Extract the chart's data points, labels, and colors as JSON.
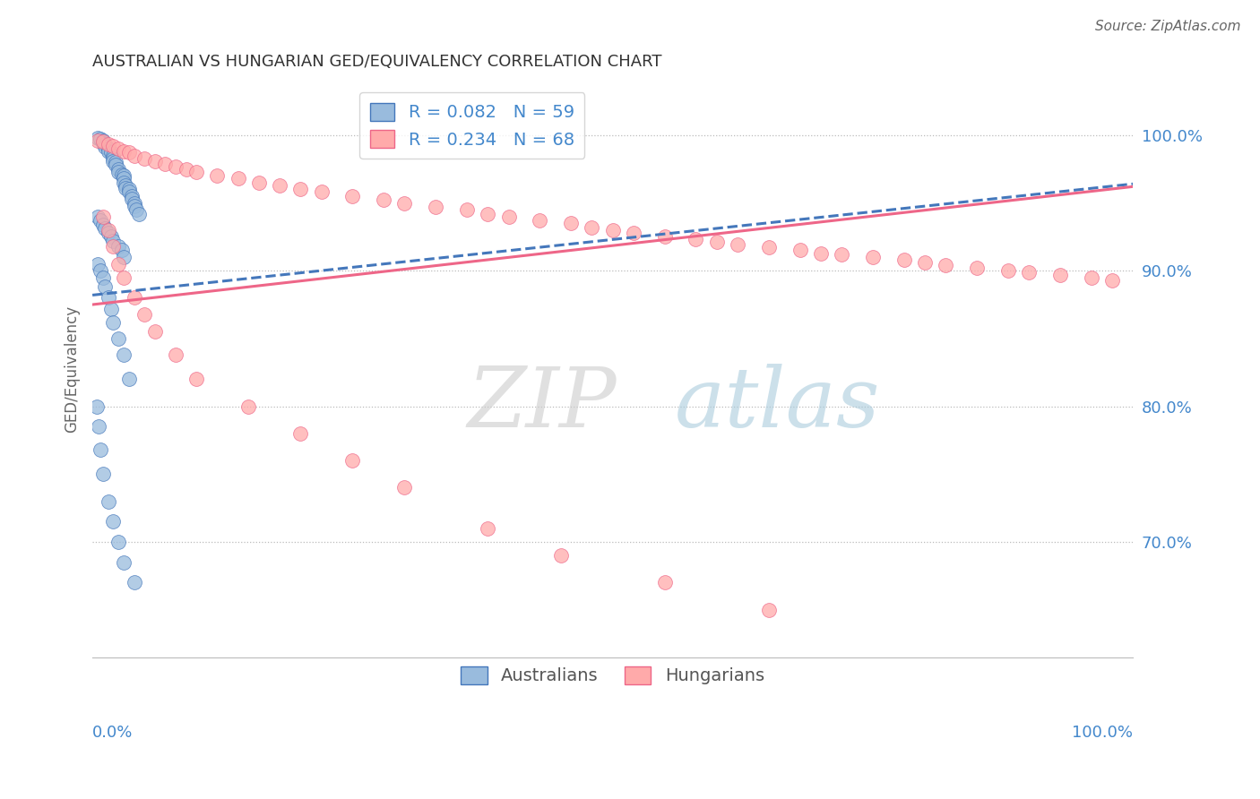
{
  "title": "AUSTRALIAN VS HUNGARIAN GED/EQUIVALENCY CORRELATION CHART",
  "source": "Source: ZipAtlas.com",
  "ylabel": "GED/Equivalency",
  "y_tick_labels": [
    "70.0%",
    "80.0%",
    "90.0%",
    "100.0%"
  ],
  "y_tick_values": [
    0.7,
    0.8,
    0.9,
    1.0
  ],
  "x_lim": [
    0.0,
    1.0
  ],
  "y_lim": [
    0.615,
    1.04
  ],
  "legend_r_blue": "R = 0.082",
  "legend_n_blue": "N = 59",
  "legend_r_pink": "R = 0.234",
  "legend_n_pink": "N = 68",
  "color_blue": "#99BBDD",
  "color_pink": "#FFAAAA",
  "color_blue_line": "#4477BB",
  "color_pink_line": "#EE6688",
  "color_axis_label": "#4488CC",
  "watermark_zip": "ZIP",
  "watermark_atlas": "atlas",
  "aus_x": [
    0.005,
    0.008,
    0.01,
    0.01,
    0.012,
    0.012,
    0.015,
    0.015,
    0.018,
    0.02,
    0.02,
    0.02,
    0.022,
    0.022,
    0.025,
    0.025,
    0.028,
    0.03,
    0.03,
    0.03,
    0.032,
    0.032,
    0.035,
    0.035,
    0.038,
    0.038,
    0.04,
    0.04,
    0.042,
    0.045,
    0.005,
    0.008,
    0.01,
    0.012,
    0.015,
    0.018,
    0.02,
    0.025,
    0.028,
    0.03,
    0.005,
    0.008,
    0.01,
    0.012,
    0.015,
    0.018,
    0.02,
    0.025,
    0.03,
    0.035,
    0.004,
    0.006,
    0.008,
    0.01,
    0.015,
    0.02,
    0.025,
    0.03,
    0.04
  ],
  "aus_y": [
    0.998,
    0.997,
    0.996,
    0.994,
    0.993,
    0.991,
    0.99,
    0.988,
    0.987,
    0.985,
    0.983,
    0.981,
    0.98,
    0.978,
    0.975,
    0.973,
    0.971,
    0.97,
    0.968,
    0.965,
    0.963,
    0.961,
    0.96,
    0.958,
    0.955,
    0.953,
    0.95,
    0.948,
    0.945,
    0.942,
    0.94,
    0.937,
    0.934,
    0.931,
    0.928,
    0.925,
    0.922,
    0.918,
    0.915,
    0.91,
    0.905,
    0.9,
    0.895,
    0.888,
    0.88,
    0.872,
    0.862,
    0.85,
    0.838,
    0.82,
    0.8,
    0.785,
    0.768,
    0.75,
    0.73,
    0.715,
    0.7,
    0.685,
    0.67
  ],
  "hun_x": [
    0.005,
    0.01,
    0.015,
    0.02,
    0.025,
    0.03,
    0.035,
    0.04,
    0.05,
    0.06,
    0.07,
    0.08,
    0.09,
    0.1,
    0.12,
    0.14,
    0.16,
    0.18,
    0.2,
    0.22,
    0.25,
    0.28,
    0.3,
    0.33,
    0.36,
    0.38,
    0.4,
    0.43,
    0.46,
    0.48,
    0.5,
    0.52,
    0.55,
    0.58,
    0.6,
    0.62,
    0.65,
    0.68,
    0.7,
    0.72,
    0.75,
    0.78,
    0.8,
    0.82,
    0.85,
    0.88,
    0.9,
    0.93,
    0.96,
    0.98,
    0.01,
    0.015,
    0.02,
    0.025,
    0.03,
    0.04,
    0.05,
    0.06,
    0.08,
    0.1,
    0.15,
    0.2,
    0.25,
    0.3,
    0.38,
    0.45,
    0.55,
    0.65
  ],
  "hun_y": [
    0.996,
    0.995,
    0.993,
    0.992,
    0.99,
    0.988,
    0.987,
    0.985,
    0.983,
    0.981,
    0.979,
    0.977,
    0.975,
    0.973,
    0.97,
    0.968,
    0.965,
    0.963,
    0.96,
    0.958,
    0.955,
    0.952,
    0.95,
    0.947,
    0.945,
    0.942,
    0.94,
    0.937,
    0.935,
    0.932,
    0.93,
    0.928,
    0.925,
    0.923,
    0.921,
    0.919,
    0.917,
    0.915,
    0.913,
    0.912,
    0.91,
    0.908,
    0.906,
    0.904,
    0.902,
    0.9,
    0.899,
    0.897,
    0.895,
    0.893,
    0.94,
    0.93,
    0.918,
    0.905,
    0.895,
    0.88,
    0.868,
    0.855,
    0.838,
    0.82,
    0.8,
    0.78,
    0.76,
    0.74,
    0.71,
    0.69,
    0.67,
    0.65
  ]
}
